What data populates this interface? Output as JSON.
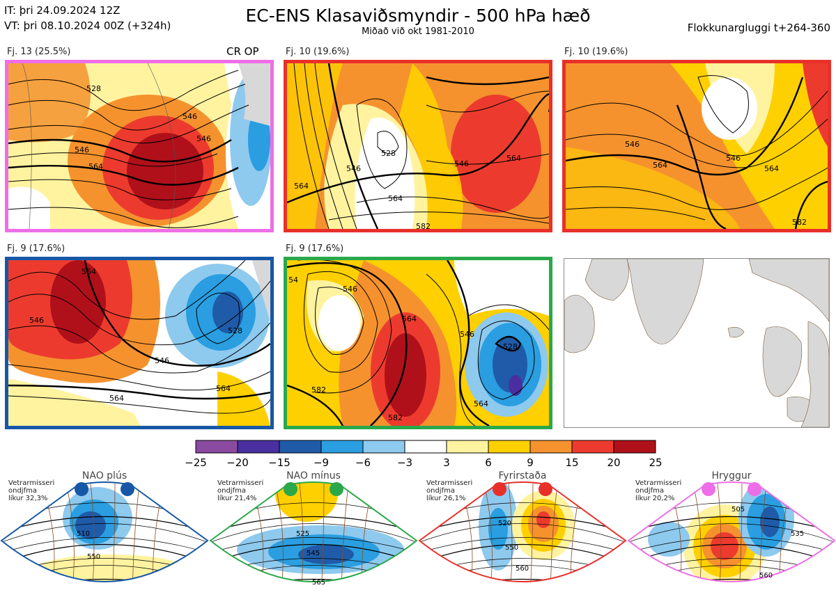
{
  "header": {
    "issue_time": "IT: þri 24.09.2024 12Z",
    "valid_time": "VT: þri 08.10.2024 00Z  (+324h)",
    "title": "EC-ENS Klasaviðsmyndir - 500 hPa hæð",
    "subtitle": "Miðað við okt 1981-2010",
    "window_label": "Flokkunargluggi t+264-360"
  },
  "clusters": [
    {
      "label": "Fj. 13 (25.5%)",
      "border_color": "#ee6ee8",
      "extra_label": "CR OP",
      "contour_labels": [
        "528",
        "546",
        "546",
        "564",
        "546"
      ]
    },
    {
      "label": "Fj. 10 (19.6%)",
      "border_color": "#e8302a",
      "contour_labels": [
        "528",
        "546",
        "546",
        "564",
        "564",
        "564",
        "582"
      ]
    },
    {
      "label": "Fj. 10 (19.6%)",
      "border_color": "#e8302a",
      "contour_labels": [
        "546",
        "546",
        "564",
        "564",
        "582"
      ]
    },
    {
      "label": "Fj. 9 (17.6%)",
      "border_color": "#1658a6",
      "contour_labels": [
        "564",
        "546",
        "528",
        "546",
        "564",
        "564"
      ]
    },
    {
      "label": "Fj. 9 (17.6%)",
      "border_color": "#2aa84a",
      "contour_labels": [
        "54",
        "546",
        "564",
        "546",
        "528",
        "582",
        "564",
        "582"
      ]
    }
  ],
  "colorbar": {
    "ticks": [
      "−25",
      "−20",
      "−15",
      "−9",
      "−6",
      "−3",
      "3",
      "6",
      "9",
      "15",
      "20",
      "25"
    ],
    "colors": [
      "#8a4aa0",
      "#4a2fa0",
      "#1f5ba8",
      "#2a9ee0",
      "#8ec9ee",
      "#ffffff",
      "#fff3a0",
      "#ffd000",
      "#f5922e",
      "#ec3b2e",
      "#b0101a"
    ]
  },
  "regimes": [
    {
      "name": "NAO plús",
      "note": [
        "Vetrarmisseri",
        "ondjfma",
        "líkur 32,3%"
      ],
      "color": "#1658a6",
      "contour_labels": [
        "510",
        "550"
      ]
    },
    {
      "name": "NAO mínus",
      "note": [
        "Vetrarmisseri",
        "ondjfma",
        "líkur 21,4%"
      ],
      "color": "#2aa84a",
      "contour_labels": [
        "525",
        "545",
        "565"
      ]
    },
    {
      "name": "Fyrirstaða",
      "note": [
        "Vetrarmisseri",
        "ondjfma",
        "líkur 26,1%"
      ],
      "color": "#e8302a",
      "contour_labels": [
        "520",
        "550",
        "560"
      ]
    },
    {
      "name": "Hryggur",
      "note": [
        "Vetrarmisseri",
        "ondjfma",
        "líkur 20,2%"
      ],
      "color": "#ee6ee8",
      "contour_labels": [
        "505",
        "535",
        "560"
      ]
    }
  ]
}
